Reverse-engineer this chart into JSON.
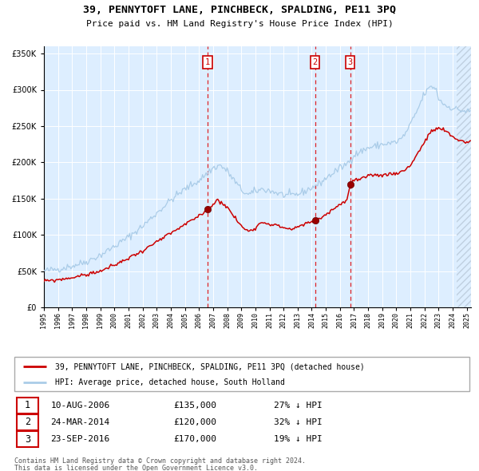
{
  "title": "39, PENNYTOFT LANE, PINCHBECK, SPALDING, PE11 3PQ",
  "subtitle": "Price paid vs. HM Land Registry's House Price Index (HPI)",
  "legend_line1": "39, PENNYTOFT LANE, PINCHBECK, SPALDING, PE11 3PQ (detached house)",
  "legend_line2": "HPI: Average price, detached house, South Holland",
  "footer1": "Contains HM Land Registry data © Crown copyright and database right 2024.",
  "footer2": "This data is licensed under the Open Government Licence v3.0.",
  "transactions": [
    {
      "num": 1,
      "date": "10-AUG-2006",
      "price": 135000,
      "pct": "27% ↓ HPI",
      "date_decimal": 2006.61
    },
    {
      "num": 2,
      "date": "24-MAR-2014",
      "price": 120000,
      "pct": "32% ↓ HPI",
      "date_decimal": 2014.23
    },
    {
      "num": 3,
      "date": "23-SEP-2016",
      "price": 170000,
      "pct": "19% ↓ HPI",
      "date_decimal": 2016.73
    }
  ],
  "hpi_color": "#aacce8",
  "price_color": "#cc0000",
  "bg_color": "#ddeeff",
  "ylim": [
    0,
    360000
  ],
  "xlim_start": 1995.0,
  "xlim_end": 2025.3,
  "hpi_anchors": [
    [
      1995.0,
      50000
    ],
    [
      1996.0,
      53000
    ],
    [
      1997.0,
      57000
    ],
    [
      1998.0,
      63000
    ],
    [
      1999.0,
      72000
    ],
    [
      2000.0,
      84000
    ],
    [
      2001.0,
      97000
    ],
    [
      2002.0,
      112000
    ],
    [
      2003.0,
      130000
    ],
    [
      2004.0,
      148000
    ],
    [
      2005.0,
      163000
    ],
    [
      2006.0,
      175000
    ],
    [
      2007.0,
      192000
    ],
    [
      2007.5,
      196000
    ],
    [
      2008.0,
      188000
    ],
    [
      2008.5,
      175000
    ],
    [
      2009.0,
      162000
    ],
    [
      2009.5,
      155000
    ],
    [
      2010.0,
      160000
    ],
    [
      2010.5,
      163000
    ],
    [
      2011.0,
      161000
    ],
    [
      2011.5,
      158000
    ],
    [
      2012.0,
      155000
    ],
    [
      2012.5,
      154000
    ],
    [
      2013.0,
      156000
    ],
    [
      2013.5,
      160000
    ],
    [
      2014.0,
      165000
    ],
    [
      2014.5,
      170000
    ],
    [
      2015.0,
      178000
    ],
    [
      2015.5,
      185000
    ],
    [
      2016.0,
      192000
    ],
    [
      2016.5,
      198000
    ],
    [
      2017.0,
      210000
    ],
    [
      2017.5,
      215000
    ],
    [
      2018.0,
      220000
    ],
    [
      2018.5,
      222000
    ],
    [
      2019.0,
      225000
    ],
    [
      2019.5,
      226000
    ],
    [
      2020.0,
      228000
    ],
    [
      2020.5,
      235000
    ],
    [
      2021.0,
      252000
    ],
    [
      2021.5,
      272000
    ],
    [
      2022.0,
      295000
    ],
    [
      2022.5,
      305000
    ],
    [
      2022.8,
      302000
    ],
    [
      2023.0,
      288000
    ],
    [
      2023.5,
      278000
    ],
    [
      2024.0,
      275000
    ],
    [
      2024.5,
      272000
    ],
    [
      2025.0,
      270000
    ]
  ],
  "price_anchors": [
    [
      1995.0,
      36000
    ],
    [
      1996.0,
      38000
    ],
    [
      1997.0,
      41000
    ],
    [
      1998.0,
      45000
    ],
    [
      1999.0,
      50000
    ],
    [
      2000.0,
      58000
    ],
    [
      2001.0,
      68000
    ],
    [
      2002.0,
      78000
    ],
    [
      2003.0,
      90000
    ],
    [
      2004.0,
      102000
    ],
    [
      2005.0,
      114000
    ],
    [
      2006.0,
      126000
    ],
    [
      2006.61,
      135000
    ],
    [
      2007.0,
      142000
    ],
    [
      2007.3,
      148000
    ],
    [
      2007.6,
      145000
    ],
    [
      2008.0,
      138000
    ],
    [
      2008.5,
      125000
    ],
    [
      2009.0,
      112000
    ],
    [
      2009.5,
      105000
    ],
    [
      2010.0,
      110000
    ],
    [
      2010.5,
      118000
    ],
    [
      2011.0,
      115000
    ],
    [
      2011.5,
      113000
    ],
    [
      2012.0,
      110000
    ],
    [
      2012.5,
      108000
    ],
    [
      2013.0,
      110000
    ],
    [
      2013.5,
      115000
    ],
    [
      2014.0,
      118000
    ],
    [
      2014.23,
      120000
    ],
    [
      2014.5,
      122000
    ],
    [
      2015.0,
      128000
    ],
    [
      2015.5,
      135000
    ],
    [
      2016.0,
      142000
    ],
    [
      2016.5,
      148000
    ],
    [
      2016.73,
      170000
    ],
    [
      2017.0,
      175000
    ],
    [
      2017.5,
      177000
    ],
    [
      2018.0,
      180000
    ],
    [
      2018.5,
      183000
    ],
    [
      2019.0,
      182000
    ],
    [
      2019.5,
      184000
    ],
    [
      2020.0,
      185000
    ],
    [
      2020.5,
      188000
    ],
    [
      2021.0,
      196000
    ],
    [
      2021.5,
      212000
    ],
    [
      2022.0,
      228000
    ],
    [
      2022.5,
      243000
    ],
    [
      2023.0,
      247000
    ],
    [
      2023.3,
      245000
    ],
    [
      2023.7,
      240000
    ],
    [
      2024.0,
      235000
    ],
    [
      2024.5,
      230000
    ],
    [
      2025.0,
      228000
    ]
  ]
}
